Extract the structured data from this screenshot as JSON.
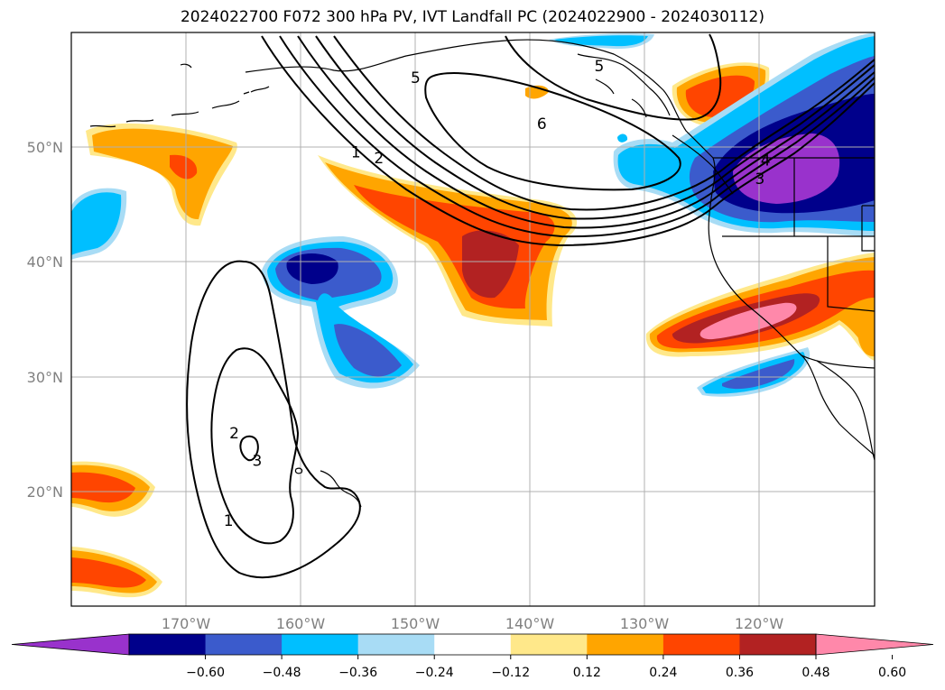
{
  "title": "2024022700 F072 300 hPa PV, IVT Landfall PC (2024022900 - 2024030112)",
  "map": {
    "projection": "PlateCarree",
    "lon_range": [
      -180,
      -110
    ],
    "lat_range": [
      10,
      60
    ],
    "lon_ticks": [
      {
        "value": -170,
        "label": "170°W"
      },
      {
        "value": -160,
        "label": "160°W"
      },
      {
        "value": -150,
        "label": "150°W"
      },
      {
        "value": -140,
        "label": "140°W"
      },
      {
        "value": -130,
        "label": "130°W"
      },
      {
        "value": -120,
        "label": "120°W"
      }
    ],
    "lat_ticks": [
      {
        "value": 50,
        "label": "50°N"
      },
      {
        "value": 40,
        "label": "40°N"
      },
      {
        "value": 30,
        "label": "30°N"
      },
      {
        "value": 20,
        "label": "20°N"
      }
    ],
    "grid": true,
    "coastlines": true,
    "pv_contour_labels": [
      {
        "label": "1",
        "lon": -155.2,
        "lat": 49.5
      },
      {
        "label": "2",
        "lon": -153.2,
        "lat": 49.0
      },
      {
        "label": "5",
        "lon": -150.0,
        "lat": 56.0
      },
      {
        "label": "6",
        "lon": -139.0,
        "lat": 52.0
      },
      {
        "label": "5",
        "lon": -134.0,
        "lat": 57.0
      },
      {
        "label": "4",
        "lon": -119.5,
        "lat": 48.8
      },
      {
        "label": "3",
        "lon": -120.0,
        "lat": 47.2
      },
      {
        "label": "2",
        "lon": -165.8,
        "lat": 25.0
      },
      {
        "label": "3",
        "lon": -163.8,
        "lat": 22.6
      },
      {
        "label": "1",
        "lon": -166.3,
        "lat": 17.4
      }
    ]
  },
  "colorbar": {
    "extend": "both",
    "colors": [
      "#9932cc",
      "#00008b",
      "#3b5bcc",
      "#00bfff",
      "#a8dcf5",
      "#ffffff",
      "#ffe88a",
      "#ffa500",
      "#ff4500",
      "#b22222",
      "#ff88aa"
    ],
    "ticks": [
      "−0.60",
      "−0.48",
      "−0.36",
      "−0.24",
      "−0.12",
      "0.12",
      "0.24",
      "0.36",
      "0.48",
      "0.60"
    ]
  }
}
